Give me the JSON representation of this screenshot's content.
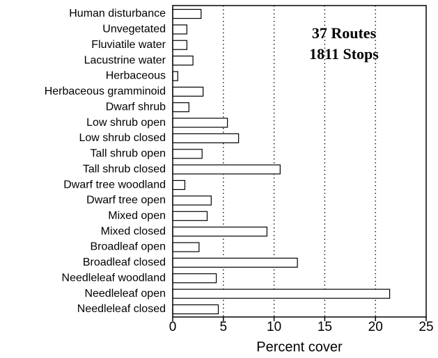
{
  "chart_data": {
    "type": "barh",
    "categories": [
      "Human disturbance",
      "Unvegetated",
      "Fluviatile water",
      "Lacustrine water",
      "Herbaceous",
      "Herbaceous gramminoid",
      "Dwarf shrub",
      "Low shrub open",
      "Low shrub closed",
      "Tall shrub open",
      "Tall shrub closed",
      "Dwarf tree woodland",
      "Dwarf tree open",
      "Mixed open",
      "Mixed closed",
      "Broadleaf open",
      "Broadleaf closed",
      "Needleleaf woodland",
      "Needleleaf open",
      "Needleleaf closed"
    ],
    "values": [
      2.8,
      1.4,
      1.4,
      2.0,
      0.5,
      3.0,
      1.6,
      5.4,
      6.5,
      2.9,
      10.6,
      1.2,
      3.8,
      3.4,
      9.3,
      2.6,
      12.3,
      4.3,
      21.4,
      4.5
    ],
    "color": "#ffffff",
    "xlim": [
      0,
      25
    ],
    "xticks": [
      0,
      5,
      10,
      15,
      20,
      25
    ],
    "xlabel": "Percent cover",
    "annotation": [
      "37 Routes",
      "1811 Stops"
    ],
    "grid": true
  }
}
